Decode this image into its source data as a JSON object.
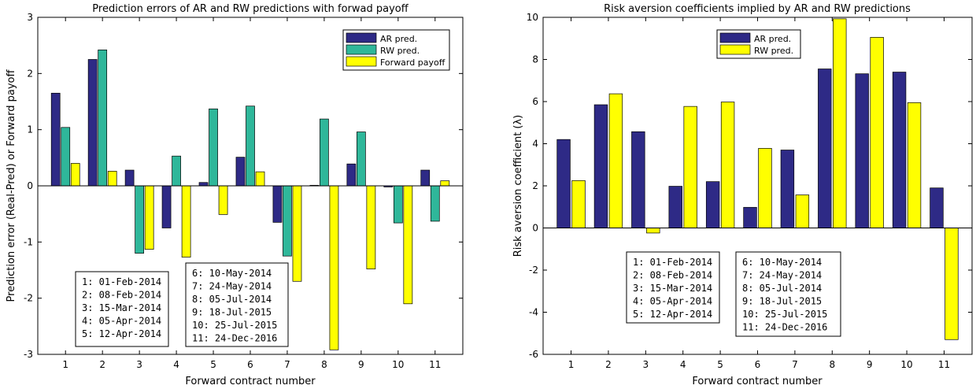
{
  "colors": {
    "ar": "#2e2a86",
    "rw": "#2fb79a",
    "fwd": "#ffff00",
    "rw_right": "#ffff00"
  },
  "chart_data": [
    {
      "type": "bar",
      "title": "Prediction errors of AR and RW predictions with forwad payoff",
      "xlabel": "Forward contract number",
      "ylabel": "Prediction error (Real-Pred) or Forward payoff",
      "categories": [
        "1",
        "2",
        "3",
        "4",
        "5",
        "6",
        "7",
        "8",
        "9",
        "10",
        "11"
      ],
      "yticks": [
        "-3",
        "-2",
        "-1",
        "0",
        "1",
        "2",
        "3"
      ],
      "ylim": [
        -3,
        3
      ],
      "legend_position": "top-right",
      "series": [
        {
          "name": "AR pred.",
          "color_key": "ar",
          "values": [
            1.65,
            2.25,
            0.28,
            -0.75,
            0.06,
            0.51,
            -0.65,
            0.01,
            0.39,
            -0.02,
            0.28
          ]
        },
        {
          "name": "RW pred.",
          "color_key": "rw",
          "values": [
            1.04,
            2.42,
            -1.2,
            0.53,
            1.37,
            1.42,
            -1.25,
            1.19,
            0.96,
            -0.66,
            -0.63
          ]
        },
        {
          "name": "Forward payoff",
          "color_key": "fwd",
          "values": [
            0.4,
            0.26,
            -1.13,
            -1.27,
            -0.51,
            0.25,
            -1.7,
            -2.92,
            -1.48,
            -2.1,
            0.09
          ]
        }
      ],
      "date_boxes": [
        [
          "1: 01-Feb-2014",
          "2: 08-Feb-2014",
          "3: 15-Mar-2014",
          "4: 05-Apr-2014",
          "5: 12-Apr-2014"
        ],
        [
          "6: 10-May-2014",
          "7: 24-May-2014",
          "8: 05-Jul-2014",
          "9: 18-Jul-2015",
          "10: 25-Jul-2015",
          "11: 24-Dec-2016"
        ]
      ]
    },
    {
      "type": "bar",
      "title": "Risk aversion coefficients implied by AR and RW predictions",
      "xlabel": "Forward contract number",
      "ylabel": "Risk aversion coefficient (λ)",
      "categories": [
        "1",
        "2",
        "3",
        "4",
        "5",
        "6",
        "7",
        "8",
        "9",
        "10",
        "11"
      ],
      "yticks": [
        "-6",
        "-4",
        "-2",
        "0",
        "2",
        "4",
        "6",
        "8",
        "10"
      ],
      "ylim": [
        -6,
        10
      ],
      "legend_position": "top-left",
      "series": [
        {
          "name": "AR pred.",
          "color_key": "ar",
          "values": [
            4.2,
            5.85,
            4.57,
            1.98,
            2.2,
            0.98,
            3.7,
            7.55,
            7.32,
            7.4,
            1.9
          ]
        },
        {
          "name": "RW pred.",
          "color_key": "rw_right",
          "values": [
            2.25,
            6.37,
            -0.24,
            5.77,
            5.98,
            3.78,
            1.57,
            9.93,
            9.05,
            5.95,
            -5.3
          ]
        }
      ],
      "date_boxes": [
        [
          "1: 01-Feb-2014",
          "2: 08-Feb-2014",
          "3: 15-Mar-2014",
          "4: 05-Apr-2014",
          "5: 12-Apr-2014"
        ],
        [
          "6: 10-May-2014",
          "7: 24-May-2014",
          "8: 05-Jul-2014",
          "9: 18-Jul-2015",
          "10: 25-Jul-2015",
          "11: 24-Dec-2016"
        ]
      ]
    }
  ]
}
